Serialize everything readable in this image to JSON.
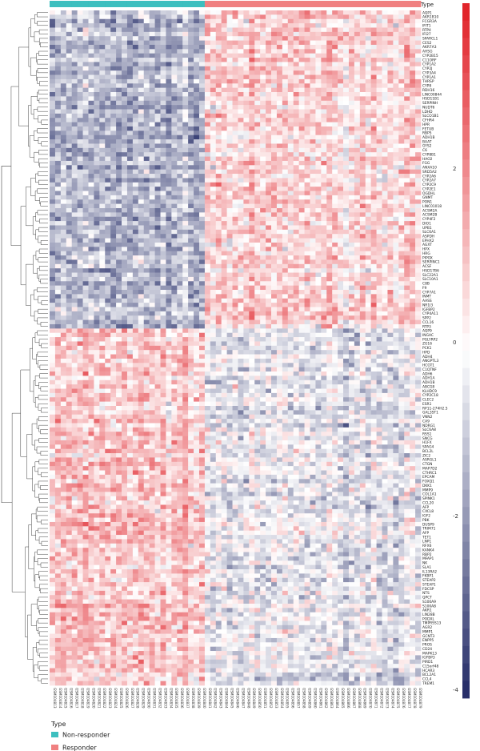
{
  "chart_data": {
    "type": "heatmap",
    "annotation_label": "Type",
    "legend": {
      "title": "Type",
      "items": [
        {
          "label": "Non-responder",
          "color": "#3dbfbf"
        },
        {
          "label": "Responder",
          "color": "#f08080"
        }
      ]
    },
    "color_scale": {
      "low_color": "#222a66",
      "mid_color": "#ffffff",
      "high_color": "#e01f26",
      "min": -4,
      "max": 4,
      "ticks": [
        "4",
        "2",
        "0",
        "-2",
        "-4"
      ]
    },
    "groups": [
      {
        "name": "Non-responder",
        "count": 28
      },
      {
        "name": "Responder",
        "count": 39
      }
    ],
    "genes_up_in_nonresponder_count": 74,
    "genes": [
      "AQP1",
      "AKR1B10",
      "FCGR3A",
      "IFIT1",
      "RTP4",
      "IFI27",
      "SPARCL1",
      "CES2",
      "AKR7A3",
      "AHSG",
      "CYP2B15",
      "C11ORF",
      "CYP1A2",
      "CYP2J",
      "CYP3A4",
      "CYP1A1",
      "THRSP",
      "CYP8",
      "RDH16",
      "LINC00844",
      "HSD11B1",
      "SERPINH",
      "NUDT6",
      "LDHD",
      "SLCO1B1",
      "CFHR4",
      "HPR",
      "FETUB",
      "RBP5",
      "ADH1B",
      "BAAT",
      "GYS2",
      "C6",
      "CYP8B1",
      "HAO2",
      "FGG",
      "ANXA10",
      "SRD5A2",
      "CYP2A6",
      "CYP2A7",
      "CYP2C9",
      "CYP2E1",
      "OGDHL",
      "GNMT",
      "PON1",
      "LINC01018",
      "ACSM2A",
      "ACSM2B",
      "CYP4F2",
      "DIO1",
      "UPB1",
      "SLC6A1",
      "ASPDH",
      "EPHX2",
      "AGXT",
      "HPX",
      "HRG",
      "PIPOX",
      "SERPINC1",
      "ACSF",
      "HSD17B6",
      "SLC22A1",
      "SLC10A1",
      "C8B",
      "F9",
      "CYP7A1",
      "INMT",
      "AASS",
      "NR1I3",
      "IGFBP2",
      "CYP4A11",
      "SPP2",
      "CCL16",
      "RTP3",
      "AQP9",
      "INGAC",
      "PGLYRP2",
      "ZG16",
      "PCK1",
      "HPD",
      "ADH4",
      "ANGPTL3",
      "HCGT1",
      "C1QTNF",
      "ADH6",
      "ADH1A",
      "ADH1B",
      "ABCG8",
      "KLHDC9",
      "CYP2C18",
      "CLEC2",
      "ESR1",
      "RP11-274H2.5",
      "GAL3ST1",
      "VNN2",
      "CA9",
      "NDRG1",
      "SLC6A8",
      "RSS1",
      "SNCG",
      "H1FX",
      "SPAG4",
      "BCL2L",
      "ZIC2",
      "ASRGL1",
      "CTGN",
      "MAP7D2",
      "CTHRC1",
      "EPCAM",
      "FOXQ1",
      "DKK1",
      "MMP9",
      "COL1A1",
      "SPINK1",
      "CCL20",
      "AFP",
      "CXCL8",
      "IGF2",
      "PBK",
      "DUSP9",
      "TRIM71",
      "AFP",
      "TET1",
      "LNP1",
      "RFX6",
      "KANK4",
      "RBP2",
      "MFAP1",
      "NK",
      "SLA1",
      "IL13RA2",
      "FKBP1",
      "STEAP2",
      "STEAP1",
      "FDCSP",
      "NTS",
      "QPCT",
      "S100A9",
      "S100A8",
      "AKR1",
      "LIN28B",
      "PODXL",
      "TMPRSS13",
      "AGR2",
      "MMP1",
      "GCNT3",
      "ENPP5",
      "PROS",
      "CD24",
      "MAPK13",
      "IGFBP3",
      "PIRD1",
      "C15orf48",
      "HCAR3",
      "BCL2A1",
      "CCL4",
      "TREM1"
    ],
    "samples": [
      "GSM104813",
      "GSM104814",
      "GSM104815",
      "GSM104816",
      "GSM104817",
      "GSM104818",
      "GSM104819",
      "GSM104820",
      "GSM104821",
      "GSM104822",
      "GSM104823",
      "GSM104824",
      "GSM104825",
      "GSM104826",
      "GSM104827",
      "GSM104828",
      "GSM104829",
      "GSM104830",
      "GSM104831",
      "GSM104832",
      "GSM104833",
      "GSM104834",
      "GSM104835",
      "GSM104836",
      "GSM104837",
      "GSM104838",
      "GSM104839",
      "GSM104840",
      "GSM104841",
      "GSM104842",
      "GSM104843",
      "GSM104844",
      "GSM104845",
      "GSM104846",
      "GSM104847",
      "GSM104848",
      "GSM104849",
      "GSM104850",
      "GSM104851",
      "GSM104852",
      "GSM104853",
      "GSM104854",
      "GSM104855",
      "GSM104856",
      "GSM104857",
      "GSM104858",
      "GSM104859",
      "GSM104860",
      "GSM104861",
      "GSM104862",
      "GSM104863",
      "GSM104864",
      "GSM104865",
      "GSM104866",
      "GSM104867",
      "GSM104868",
      "GSM104869",
      "GSM104870",
      "GSM104871",
      "GSM104872",
      "GSM104873",
      "GSM104874",
      "GSM104875",
      "GSM104876",
      "GSM104877",
      "GSM104878",
      "GSM104879"
    ]
  }
}
